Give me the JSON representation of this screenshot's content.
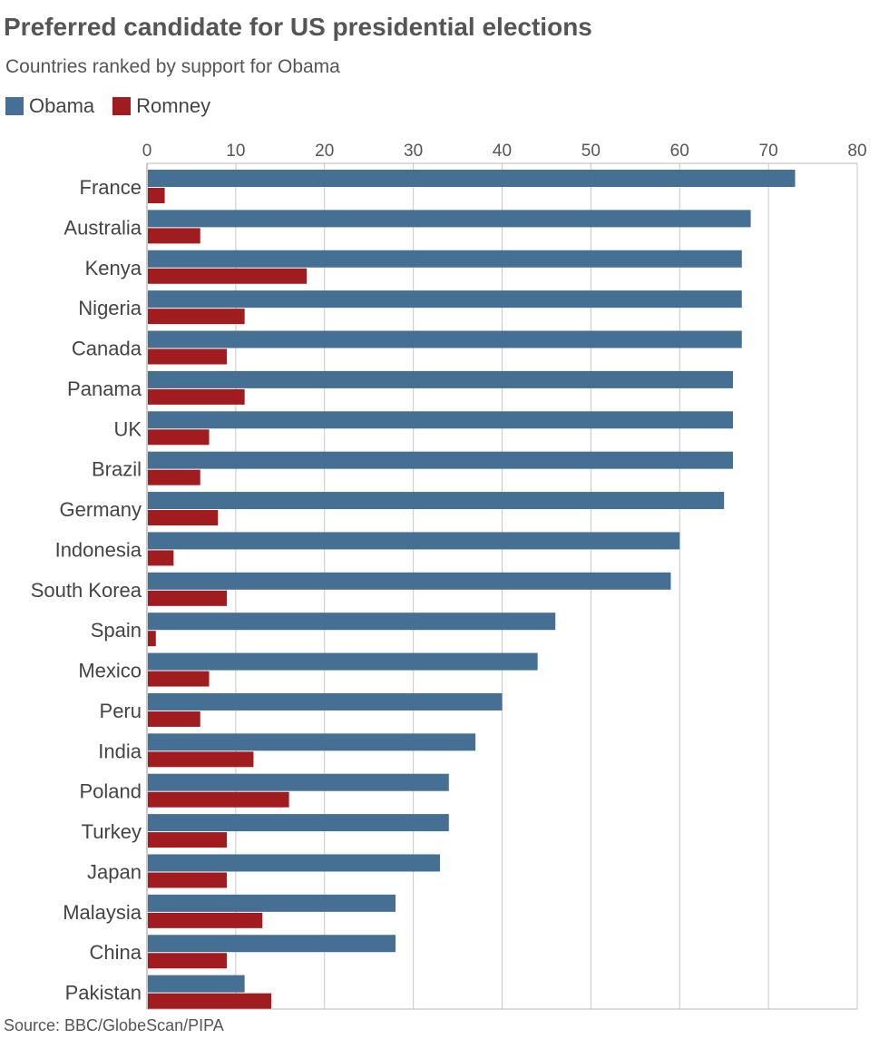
{
  "chart_data": {
    "type": "bar",
    "orientation": "horizontal",
    "title": "Preferred candidate for US presidential elections",
    "subtitle": "Countries ranked by support for Obama",
    "source": "Source: BBC/GlobeScan/PIPA",
    "xlabel": "",
    "ylabel": "",
    "xlim": [
      0,
      80
    ],
    "xticks": [
      0,
      10,
      20,
      30,
      40,
      50,
      60,
      70,
      80
    ],
    "grid": true,
    "legend_position": "top-left",
    "categories": [
      "France",
      "Australia",
      "Kenya",
      "Nigeria",
      "Canada",
      "Panama",
      "UK",
      "Brazil",
      "Germany",
      "Indonesia",
      "South Korea",
      "Spain",
      "Mexico",
      "Peru",
      "India",
      "Poland",
      "Turkey",
      "Japan",
      "Malaysia",
      "China",
      "Pakistan"
    ],
    "series": [
      {
        "name": "Obama",
        "color": "#456f93",
        "values": [
          73,
          68,
          67,
          67,
          67,
          66,
          66,
          66,
          65,
          60,
          59,
          46,
          44,
          40,
          37,
          34,
          34,
          33,
          28,
          28,
          11
        ]
      },
      {
        "name": "Romney",
        "color": "#a11c1f",
        "values": [
          2,
          6,
          18,
          11,
          9,
          11,
          7,
          6,
          8,
          3,
          9,
          1,
          7,
          6,
          12,
          16,
          9,
          9,
          13,
          9,
          14
        ]
      }
    ]
  }
}
